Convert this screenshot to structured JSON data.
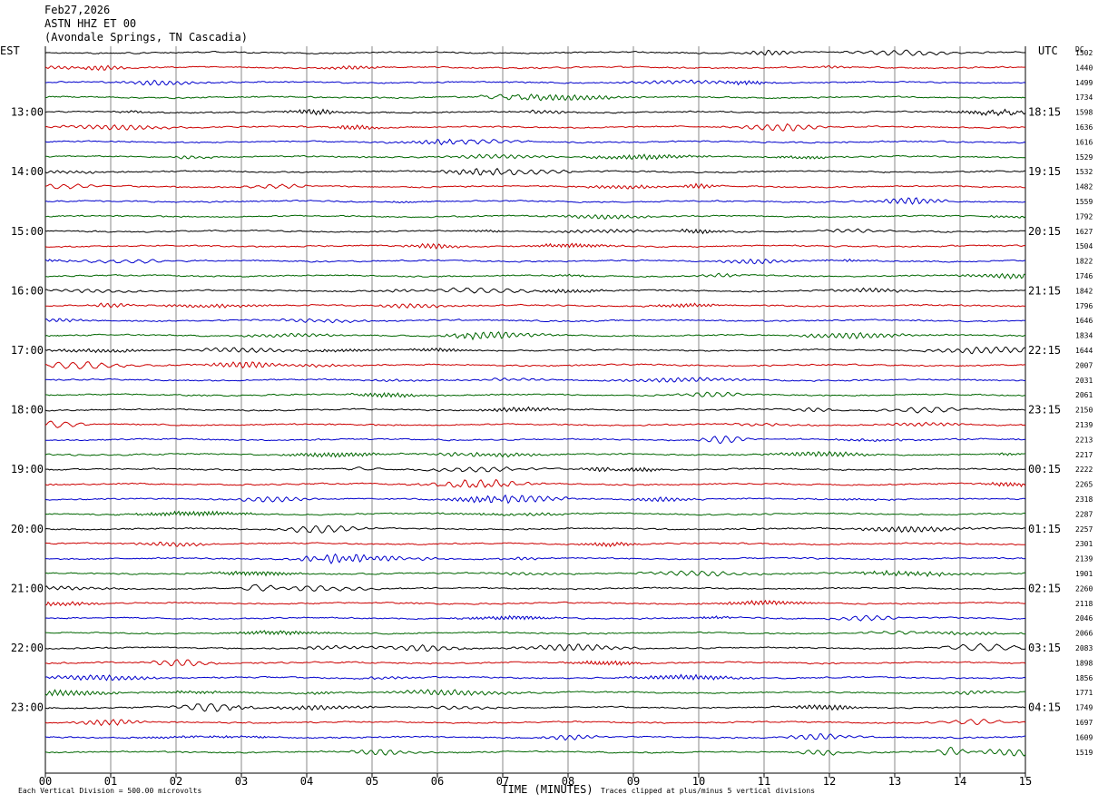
{
  "header": {
    "date": "Feb27,2026",
    "station": "ASTN HHZ ET 00",
    "location": "(Avondale Springs, TN Cascadia)"
  },
  "left_zone": "EST",
  "right_zone": "UTC",
  "dc_label": "DC",
  "footer": {
    "scale_note": "Each Vertical Division = 500.00 microvolts",
    "x_title": "TIME (MINUTES)",
    "clip_note": "Traces clipped at plus/minus 5 vertical divisions"
  },
  "chart_data": {
    "type": "line",
    "title": "ASTN HHZ ET 00",
    "xlabel": "TIME (MINUTES)",
    "xlim": [
      0,
      15
    ],
    "x_ticks": [
      "00",
      "01",
      "02",
      "03",
      "04",
      "05",
      "06",
      "07",
      "08",
      "09",
      "10",
      "11",
      "12",
      "13",
      "14",
      "15"
    ],
    "trace_colors": [
      "#000000",
      "#cc0000",
      "#0000cc",
      "#006600"
    ],
    "left_hour_labels": [
      "13:00",
      "14:00",
      "15:00",
      "16:00",
      "17:00",
      "18:00",
      "19:00",
      "20:00",
      "21:00",
      "22:00",
      "23:00"
    ],
    "right_hour_labels": [
      "18:15",
      "19:15",
      "20:15",
      "21:15",
      "22:15",
      "23:15",
      "00:15",
      "01:15",
      "02:15",
      "03:15",
      "04:15"
    ],
    "dc_offsets": [
      1502,
      1440,
      1499,
      1734,
      1598,
      1636,
      1616,
      1529,
      1532,
      1482,
      1559,
      1792,
      1627,
      1504,
      1822,
      1746,
      1842,
      1796,
      1646,
      1834,
      1644,
      2007,
      2031,
      2061,
      2150,
      2139,
      2213,
      2217,
      2222,
      2265,
      2318,
      2287,
      2257,
      2301,
      2139,
      1901,
      2260,
      2118,
      2046,
      2066,
      2083,
      1898,
      1856,
      1771,
      1749,
      1697,
      1609,
      1519
    ],
    "trace_count": 48,
    "amplitude_scale_microvolts_per_division": 500.0,
    "clip_divisions": 5
  }
}
